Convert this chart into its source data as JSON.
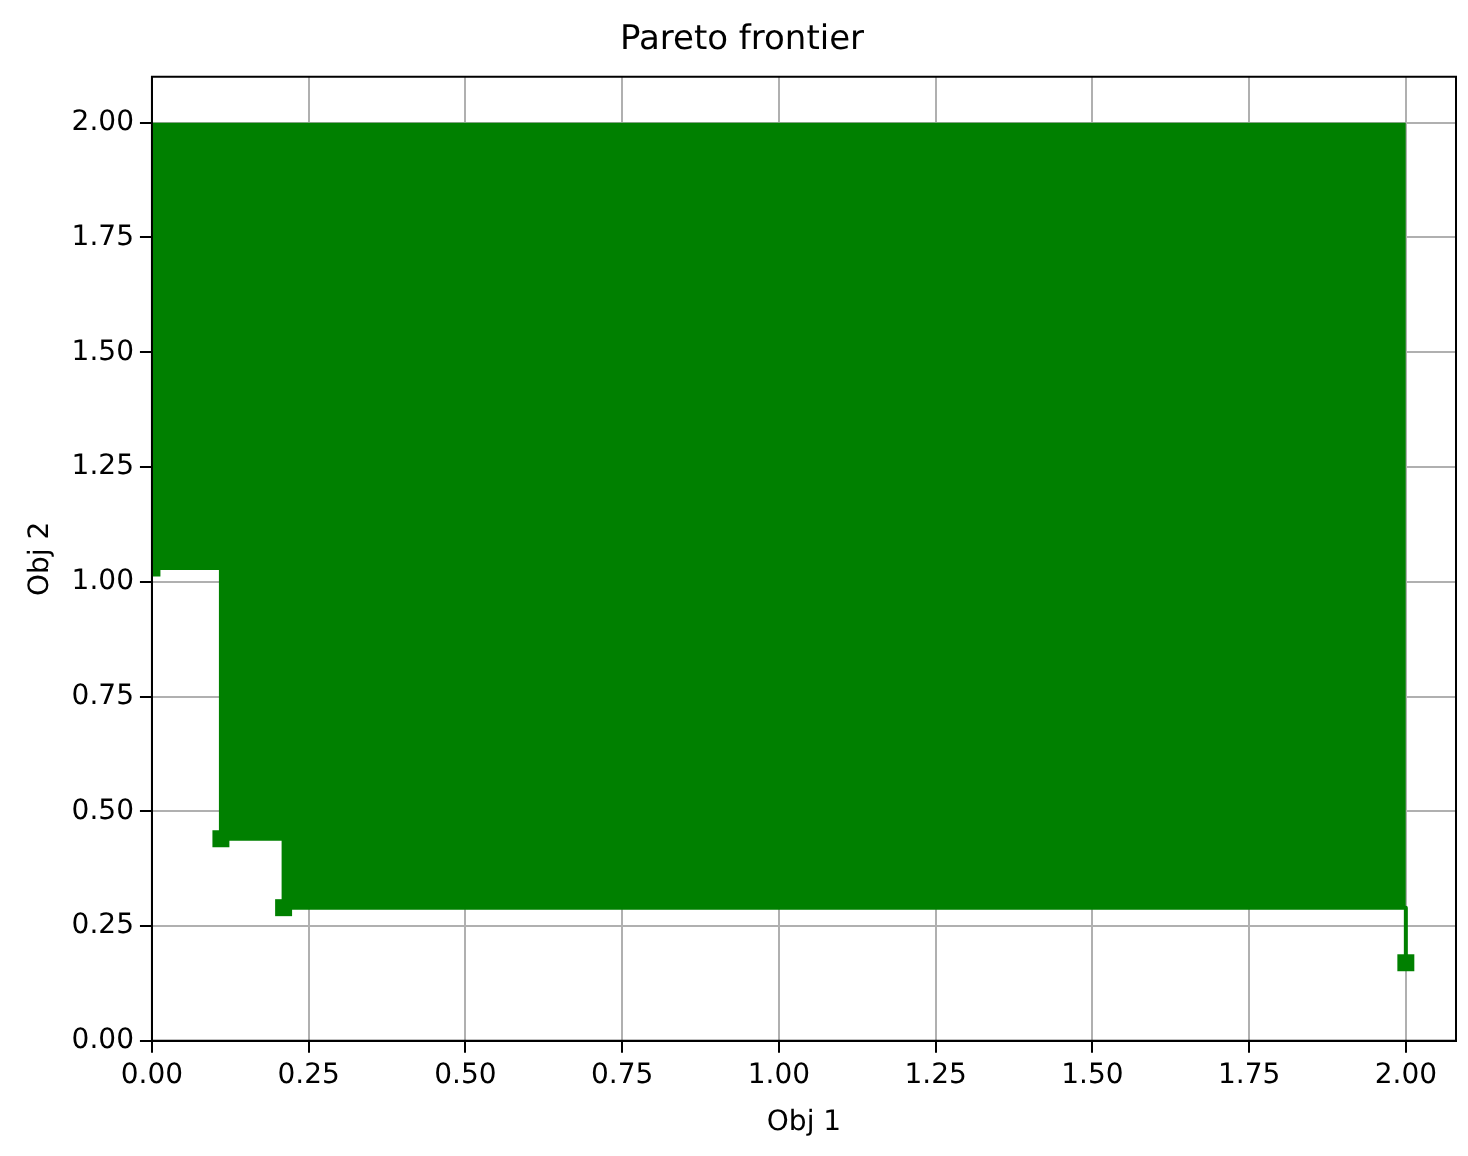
{
  "chart_data": {
    "type": "step",
    "title": "Pareto frontier",
    "xlabel": "Obj 1",
    "ylabel": "Obj 2",
    "x": [
      0.0,
      0.11,
      0.21,
      2.0
    ],
    "series": [
      {
        "color": "#008000",
        "values": [
          1.03,
          0.44,
          0.29,
          0.17
        ],
        "lower": [
          1.03,
          0.44,
          0.29,
          0.17
        ],
        "upper": [
          2.0,
          2.0,
          2.0,
          2.0
        ]
      }
    ],
    "xlim": [
      0,
      2.08
    ],
    "ylim": [
      0,
      2.1
    ],
    "xticks": [
      {
        "value": 0,
        "label": "0.00"
      },
      {
        "value": 0.25,
        "label": "0.25"
      },
      {
        "value": 0.5,
        "label": "0.50"
      },
      {
        "value": 0.75,
        "label": "0.75"
      },
      {
        "value": 1,
        "label": "1.00"
      },
      {
        "value": 1.25,
        "label": "1.25"
      },
      {
        "value": 1.5,
        "label": "1.50"
      },
      {
        "value": 1.75,
        "label": "1.75"
      },
      {
        "value": 2,
        "label": "2.00"
      }
    ],
    "yticks": [
      {
        "value": 0,
        "label": "0.00"
      },
      {
        "value": 0.25,
        "label": "0.25"
      },
      {
        "value": 0.5,
        "label": "0.50"
      },
      {
        "value": 0.75,
        "label": "0.75"
      },
      {
        "value": 1,
        "label": "1.00"
      },
      {
        "value": 1.25,
        "label": "1.25"
      },
      {
        "value": 1.5,
        "label": "1.50"
      },
      {
        "value": 1.75,
        "label": "1.75"
      },
      {
        "value": 2,
        "label": "2.00"
      }
    ],
    "grid": true,
    "legend": false,
    "marker": "square",
    "line_style": "solid"
  }
}
